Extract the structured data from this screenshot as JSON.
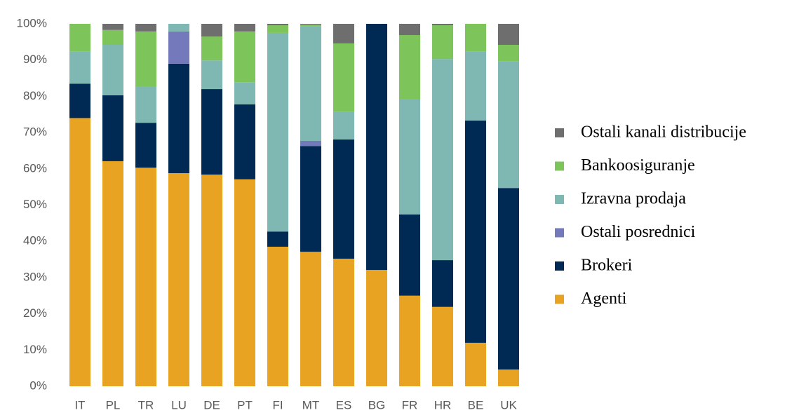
{
  "chart_data": {
    "type": "stacked_bar",
    "categories": [
      "IT",
      "PL",
      "TR",
      "LU",
      "DE",
      "PT",
      "FI",
      "MT",
      "ES",
      "BG",
      "FR",
      "HR",
      "BE",
      "UK"
    ],
    "series": [
      {
        "name": "Agenti",
        "color": "#e8a323",
        "values": [
          74,
          62.1,
          60.3,
          58.8,
          58.4,
          57.1,
          38.5,
          37.1,
          35.2,
          32.1,
          25,
          21.9,
          12,
          4.6
        ]
      },
      {
        "name": "Brokeri",
        "color": "#002a54",
        "values": [
          9.5,
          18.2,
          12.4,
          30.2,
          23.6,
          20.7,
          4.2,
          29.2,
          32.9,
          67.9,
          22.4,
          12.9,
          61.3,
          50.1
        ]
      },
      {
        "name": "Ostali posrednici",
        "color": "#7479bb",
        "values": [
          0,
          0,
          0,
          8.9,
          0,
          0,
          0,
          1.4,
          0,
          0,
          0,
          0,
          0,
          0
        ]
      },
      {
        "name": "Izravna prodaja",
        "color": "#7fb8b2",
        "values": [
          8.8,
          13.9,
          9.9,
          2.1,
          7.9,
          6.1,
          54.8,
          31.7,
          7.7,
          0,
          31.9,
          55.5,
          19,
          34.9
        ]
      },
      {
        "name": "Bankoosiguranje",
        "color": "#7dc45a",
        "values": [
          7.7,
          4.1,
          15.3,
          0,
          6.6,
          14,
          2.1,
          0.4,
          18.8,
          0,
          17.6,
          9.3,
          7.7,
          4.6
        ]
      },
      {
        "name": "Ostali kanali distribucije",
        "color": "#6e6e6e",
        "values": [
          0,
          1.7,
          2.1,
          0,
          3.5,
          2.1,
          0.4,
          0.2,
          5.4,
          0,
          3.1,
          0.4,
          0,
          5.8
        ]
      }
    ],
    "ylim": [
      0,
      100
    ],
    "yticks": [
      {
        "value": 0,
        "label": "0%"
      },
      {
        "value": 10,
        "label": "10%"
      },
      {
        "value": 20,
        "label": "20%"
      },
      {
        "value": 30,
        "label": "30%"
      },
      {
        "value": 40,
        "label": "40%"
      },
      {
        "value": 50,
        "label": "50%"
      },
      {
        "value": 60,
        "label": "60%"
      },
      {
        "value": 70,
        "label": "70%"
      },
      {
        "value": 80,
        "label": "80%"
      },
      {
        "value": 90,
        "label": "90%"
      },
      {
        "value": 100,
        "label": "100%"
      }
    ],
    "legend": "right"
  }
}
